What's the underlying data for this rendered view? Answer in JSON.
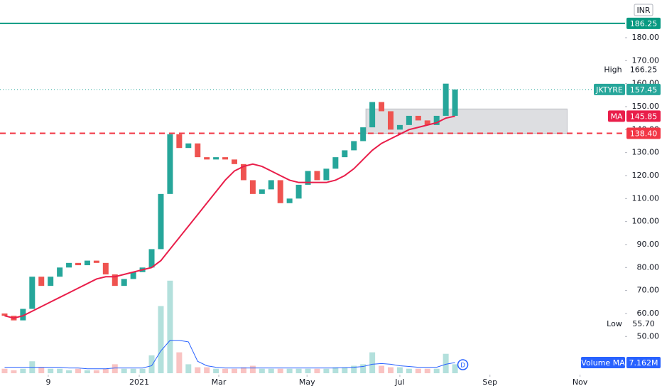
{
  "chart_data": {
    "type": "candlestick",
    "currency": "INR",
    "symbol": "JKTYRE",
    "up_color": "#26a69a",
    "down_color": "#ef5350",
    "x": [
      0,
      1,
      2,
      3,
      4,
      5,
      6,
      7,
      8,
      9,
      10,
      11,
      12,
      13,
      14,
      15,
      16,
      17,
      18,
      19,
      20,
      21,
      22,
      23,
      24,
      25,
      26,
      27,
      28,
      29,
      30,
      31,
      32,
      33,
      34,
      35,
      36,
      37,
      38,
      39,
      40,
      41,
      42,
      43,
      44,
      45,
      46,
      47,
      48,
      49
    ],
    "open": [
      60,
      59,
      57,
      62,
      76,
      72,
      76,
      80,
      82,
      81,
      83,
      82,
      77,
      72,
      75,
      78,
      80,
      88,
      112,
      138,
      132,
      134,
      128,
      127,
      128,
      127,
      125,
      118,
      112,
      114,
      118,
      108,
      110,
      116,
      122,
      118,
      123,
      128,
      131,
      135,
      141,
      152,
      148,
      140,
      142,
      146,
      144,
      142,
      146,
      146
    ],
    "high": {
      "name": "High",
      "value": 166.25
    },
    "low": {
      "name": "Low",
      "value": {
        "value": 55.7,
        "label": "55.70"
      }
    },
    "close": [
      59,
      57,
      62,
      76,
      72,
      76,
      80,
      82,
      81,
      83,
      82,
      77,
      72,
      75,
      78,
      80,
      88,
      112,
      138,
      132,
      134,
      128,
      127,
      128,
      127,
      125,
      118,
      112,
      114,
      118,
      108,
      110,
      116,
      122,
      118,
      123,
      128,
      131,
      135,
      141,
      152,
      148,
      140,
      142,
      146,
      144,
      142,
      146,
      160,
      157.45
    ],
    "ma": {
      "name": "MA",
      "color": "#e91e4a",
      "values": [
        59,
        58,
        59,
        61,
        63,
        65,
        67,
        69,
        71,
        73,
        75,
        76,
        76,
        77,
        78,
        79,
        80,
        83,
        88,
        93,
        98,
        103,
        108,
        113,
        118,
        122,
        124,
        125,
        124,
        122,
        120,
        118,
        117,
        117,
        117,
        117,
        118,
        120,
        123,
        127,
        131,
        134,
        136,
        138,
        140,
        141,
        142,
        143,
        145,
        145.85
      ]
    },
    "volume": {
      "values": [
        3,
        2,
        3,
        8,
        4,
        3,
        3,
        2,
        3,
        2,
        2,
        3,
        6,
        3,
        3,
        3,
        12,
        45,
        62,
        14,
        6,
        4,
        4,
        3,
        3,
        3,
        4,
        5,
        3,
        3,
        3,
        3,
        3,
        3,
        3,
        3,
        4,
        4,
        5,
        6,
        14,
        5,
        4,
        4,
        3,
        3,
        3,
        3,
        13,
        6
      ],
      "lim": [
        0,
        250
      ],
      "ma_name": "Volume MA",
      "ma_color": "#2962ff",
      "ma_values": [
        4,
        4,
        4,
        4,
        4,
        4,
        4,
        3.5,
        3.5,
        3,
        3,
        3,
        3.5,
        3.5,
        3.5,
        3.5,
        5,
        15,
        22,
        22,
        21,
        8,
        5,
        4,
        3.5,
        3.5,
        3.5,
        3.5,
        3.5,
        3.5,
        3.5,
        3.5,
        3.5,
        3.5,
        3.5,
        3.5,
        3.5,
        3.7,
        4,
        4.5,
        6,
        6.5,
        6,
        5,
        4.5,
        4,
        4,
        4,
        6,
        7.162
      ],
      "ma_label": "7.162M"
    },
    "xlim": [
      -0.5,
      67.5
    ],
    "xticks": [
      {
        "value": 4.75,
        "label": "9"
      },
      {
        "value": 14.65,
        "label": "2021"
      },
      {
        "value": 23.3,
        "label": "Mar"
      },
      {
        "value": 32.9,
        "label": "May"
      },
      {
        "value": 43.0,
        "label": "Jul"
      },
      {
        "value": 52.8,
        "label": "Sep"
      },
      {
        "value": 62.6,
        "label": "Nov"
      }
    ],
    "ylim": [
      34,
      196.4
    ],
    "yticks": [
      {
        "value": 50,
        "label": "50.00"
      },
      {
        "value": 60,
        "label": "60.00"
      },
      {
        "value": 70,
        "label": "70.00"
      },
      {
        "value": 80,
        "label": "80.00"
      },
      {
        "value": 90,
        "label": "90.00"
      },
      {
        "value": 100,
        "label": "100.00"
      },
      {
        "value": 110,
        "label": "110.00"
      },
      {
        "value": 120,
        "label": "120.00"
      },
      {
        "value": 130,
        "label": "130.00"
      },
      {
        "value": 140,
        "label": "140.00"
      },
      {
        "value": 150,
        "label": "150.00"
      },
      {
        "value": 160,
        "label": "160.00"
      },
      {
        "value": 170,
        "label": "170.00"
      },
      {
        "value": 180,
        "label": "180.00"
      }
    ],
    "resistance": 186.25,
    "support": {
      "value": 138.4,
      "label": "138.40"
    },
    "zone": {
      "x": [
        39.3,
        61.2
      ],
      "y": [
        138.4,
        149
      ]
    },
    "event_marker": "D"
  }
}
